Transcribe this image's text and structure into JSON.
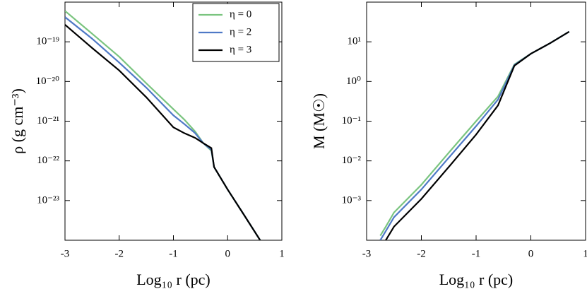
{
  "chart_data": [
    {
      "type": "line",
      "x_label": "Log₁₀ r (pc)",
      "y_label": "ρ (g cm⁻³)",
      "x": [
        -3,
        -2.5,
        -2,
        -1.5,
        -1,
        -0.8,
        -0.6,
        -0.45,
        -0.3,
        -0.25,
        0,
        0.3,
        0.6
      ],
      "series": [
        {
          "name": "η = 0",
          "color": "#7ac47f",
          "values": [
            6e-19,
            1.6e-19,
            4.2e-20,
            9e-21,
            2e-21,
            1.1e-21,
            5.5e-22,
            2.8e-22,
            1.8e-22,
            7e-23,
            1.9e-23,
            4.4e-24,
            1e-24
          ]
        },
        {
          "name": "η = 2",
          "color": "#4f79c6",
          "values": [
            4.2e-19,
            1.2e-19,
            3e-20,
            7e-21,
            1.4e-21,
            8.5e-22,
            5e-22,
            2.8e-22,
            1.9e-22,
            7e-23,
            1.9e-23,
            4.4e-24,
            1e-24
          ]
        },
        {
          "name": "η = 3",
          "color": "#000000",
          "values": [
            2.7e-19,
            7e-20,
            1.9e-20,
            4e-21,
            7e-22,
            5e-22,
            3.8e-22,
            2.8e-22,
            2.1e-22,
            7e-23,
            1.9e-23,
            4.4e-24,
            1e-24
          ]
        }
      ],
      "xlim": [
        -3,
        1
      ],
      "xticks": [
        -3,
        -2,
        -1,
        0,
        1
      ],
      "ylim": [
        1e-24,
        1e-18
      ],
      "ylog": true,
      "yticks": [
        {
          "value": 1e-23,
          "label": "10⁻²³"
        },
        {
          "value": 1e-22,
          "label": "10⁻²²"
        },
        {
          "value": 1e-21,
          "label": "10⁻²¹"
        },
        {
          "value": 1e-20,
          "label": "10⁻²⁰"
        },
        {
          "value": 1e-19,
          "label": "10⁻¹⁹"
        }
      ],
      "legend": "upper right"
    },
    {
      "type": "line",
      "x_label": "Log₁₀ r (pc)",
      "y_label": "M (M☉)",
      "x": [
        -2.75,
        -2.65,
        -2.5,
        -2,
        -1.5,
        -1,
        -0.6,
        -0.3,
        0,
        0.35,
        0.7
      ],
      "series": [
        {
          "name": "η = 0",
          "color": "#7ac47f",
          "values": [
            0.00013,
            0.00022,
            0.0005,
            0.0025,
            0.016,
            0.1,
            0.42,
            2.7,
            5,
            9.2,
            18
          ]
        },
        {
          "name": "η = 2",
          "color": "#4f79c6",
          "values": [
            0.0001,
            0.00017,
            0.00038,
            0.0019,
            0.012,
            0.075,
            0.35,
            2.6,
            5,
            9.2,
            18
          ]
        },
        {
          "name": "η = 3",
          "color": "#000000",
          "values": [
            null,
            0.0001,
            0.00022,
            0.0011,
            0.007,
            0.046,
            0.25,
            2.5,
            5,
            9.2,
            18
          ]
        }
      ],
      "xlim": [
        -3,
        1
      ],
      "xticks": [
        -3,
        -2,
        -1,
        0,
        1
      ],
      "ylim": [
        0.0001,
        100
      ],
      "ylog": true,
      "yticks": [
        {
          "value": 0.001,
          "label": "10⁻³"
        },
        {
          "value": 0.01,
          "label": "10⁻²"
        },
        {
          "value": 0.1,
          "label": "10⁻¹"
        },
        {
          "value": 1,
          "label": "10⁰"
        },
        {
          "value": 10,
          "label": "10¹"
        }
      ]
    }
  ]
}
